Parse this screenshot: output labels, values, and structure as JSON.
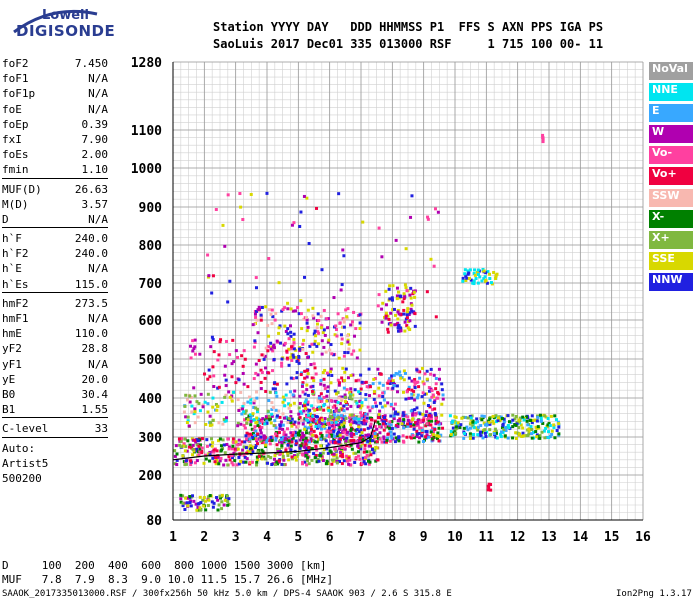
{
  "logo": {
    "line1": "Lowell",
    "line2": "DIGISONDE"
  },
  "header": {
    "labels": "Station YYYY DAY   DDD HHMMSS P1  FFS S AXN PPS IGA PS",
    "values": "SaoLuis 2017 Dec01 335 013000 RSF     1 715 100 00- 11"
  },
  "params": [
    {
      "name": "foF2",
      "value": "7.450"
    },
    {
      "name": "foF1",
      "value": "N/A"
    },
    {
      "name": "foF1p",
      "value": "N/A"
    },
    {
      "name": "foE",
      "value": "N/A"
    },
    {
      "name": "foEp",
      "value": "0.39"
    },
    {
      "name": "fxI",
      "value": "7.90"
    },
    {
      "name": "foEs",
      "value": "2.00"
    },
    {
      "name": "fmin",
      "value": "1.10"
    },
    {
      "sep": true
    },
    {
      "name": "MUF(D)",
      "value": "26.63"
    },
    {
      "name": "M(D)",
      "value": "3.57"
    },
    {
      "name": "D",
      "value": "N/A"
    },
    {
      "sep": true
    },
    {
      "name": "h`F",
      "value": "240.0"
    },
    {
      "name": "h`F2",
      "value": "240.0"
    },
    {
      "name": "h`E",
      "value": "N/A"
    },
    {
      "name": "h`Es",
      "value": "115.0"
    },
    {
      "sep": true
    },
    {
      "name": "hmF2",
      "value": "273.5"
    },
    {
      "name": "hmF1",
      "value": "N/A"
    },
    {
      "name": "hmE",
      "value": "110.0"
    },
    {
      "name": "yF2",
      "value": "28.8"
    },
    {
      "name": "yF1",
      "value": "N/A"
    },
    {
      "name": "yE",
      "value": "20.0"
    },
    {
      "name": "B0",
      "value": "30.4"
    },
    {
      "name": "B1",
      "value": "1.55"
    },
    {
      "sep": true
    },
    {
      "name": "C-level",
      "value": "33"
    },
    {
      "sep": true
    },
    {
      "name": "Auto:",
      "value": ""
    },
    {
      "name": "Artist5",
      "value": ""
    },
    {
      "name": "500200",
      "value": ""
    }
  ],
  "legend": [
    {
      "label": "NoVal",
      "color": "#a0a0a0"
    },
    {
      "label": "NNE",
      "color": "#00e5f0"
    },
    {
      "label": "E",
      "color": "#38a8ff"
    },
    {
      "label": "W",
      "color": "#b000b0"
    },
    {
      "label": "Vo-",
      "color": "#ff40a0"
    },
    {
      "label": "Vo+",
      "color": "#f00040"
    },
    {
      "label": "SSW",
      "color": "#f8b8b0"
    },
    {
      "label": "X-",
      "color": "#008000"
    },
    {
      "label": "X+",
      "color": "#80b840"
    },
    {
      "label": "SSE",
      "color": "#d8d800"
    },
    {
      "label": "NNW",
      "color": "#2020e0"
    }
  ],
  "footer": {
    "d_row": "D     100  200  400  600  800 1000 1500 3000 [km]",
    "muf_row": "MUF   7.8  7.9  8.3  9.0 10.0 11.5 15.7 26.6 [MHz]",
    "file_info": "SAAOK_2017335013000.RSF / 300fx256h 50 kHz 5.0 km / DPS-4 SAAOK 903 / 2.6 S 315.8 E",
    "version": "Ion2Png 1.3.17"
  },
  "chart_data": {
    "type": "scatter",
    "x_ticks": [
      1,
      2,
      3,
      4,
      5,
      6,
      7,
      8,
      9,
      10,
      11,
      12,
      13,
      14,
      15,
      16
    ],
    "y_ticks": [
      1280,
      1100,
      1000,
      900,
      800,
      700,
      600,
      500,
      400,
      300,
      200,
      80
    ],
    "xlim": [
      1,
      16
    ],
    "ylim": [
      80,
      1280
    ],
    "grid": true,
    "legend_position": "right",
    "trace": {
      "name": "",
      "x": [
        1.0,
        1.5,
        2.0,
        3.0,
        4.0,
        5.0,
        6.0,
        7.0,
        7.3,
        7.45
      ],
      "y": [
        240,
        245,
        250,
        255,
        258,
        262,
        272,
        285,
        300,
        340
      ]
    },
    "clusters": [
      {
        "x": [
          1.0,
          7.5
        ],
        "y": [
          230,
          300
        ],
        "n": 520,
        "colors": [
          "#f00040",
          "#ff40a0",
          "#b000b0",
          "#008000",
          "#d8d800",
          "#2020e0",
          "#80b840"
        ]
      },
      {
        "x": [
          3.2,
          9.5
        ],
        "y": [
          290,
          360
        ],
        "n": 480,
        "colors": [
          "#f00040",
          "#ff40a0",
          "#b000b0",
          "#2020e0",
          "#38a8ff",
          "#008000"
        ]
      },
      {
        "x": [
          5.0,
          9.6
        ],
        "y": [
          300,
          480
        ],
        "n": 420,
        "colors": [
          "#b000b0",
          "#ff40a0",
          "#2020e0",
          "#f00040",
          "#38a8ff",
          "#d8d800"
        ]
      },
      {
        "x": [
          1.3,
          7.0
        ],
        "y": [
          330,
          420
        ],
        "n": 220,
        "colors": [
          "#d8d800",
          "#38a8ff",
          "#00e5f0",
          "#f8b8b0",
          "#b000b0",
          "#80b840"
        ]
      },
      {
        "x": [
          9.8,
          13.3
        ],
        "y": [
          300,
          360
        ],
        "n": 260,
        "colors": [
          "#d8d800",
          "#80b840",
          "#00e5f0",
          "#2020e0",
          "#008000",
          "#38a8ff"
        ]
      },
      {
        "x": [
          3.5,
          7.0
        ],
        "y": [
          500,
          640
        ],
        "n": 180,
        "colors": [
          "#d8d800",
          "#b000b0",
          "#ff40a0",
          "#f8b8b0",
          "#2020e0"
        ]
      },
      {
        "x": [
          7.6,
          8.7
        ],
        "y": [
          570,
          700
        ],
        "n": 90,
        "colors": [
          "#b000b0",
          "#d8d800",
          "#2020e0",
          "#f00040"
        ]
      },
      {
        "x": [
          10.2,
          11.3
        ],
        "y": [
          700,
          740
        ],
        "n": 50,
        "colors": [
          "#00e5f0",
          "#d8d800",
          "#2020e0"
        ]
      },
      {
        "x": [
          1.2,
          2.8
        ],
        "y": [
          110,
          150
        ],
        "n": 70,
        "colors": [
          "#008000",
          "#80b840",
          "#b000b0",
          "#d8d800",
          "#2020e0"
        ]
      },
      {
        "x": [
          1.5,
          5.5
        ],
        "y": [
          420,
          560
        ],
        "n": 110,
        "colors": [
          "#b000b0",
          "#f00040",
          "#2020e0",
          "#ff40a0"
        ]
      },
      {
        "x": [
          2.0,
          9.5
        ],
        "y": [
          600,
          950
        ],
        "n": 60,
        "colors": [
          "#b000b0",
          "#ff40a0",
          "#d8d800",
          "#f00040",
          "#2020e0"
        ]
      },
      {
        "x": [
          12.7,
          12.8
        ],
        "y": [
          1070,
          1090
        ],
        "n": 6,
        "colors": [
          "#ff40a0"
        ]
      },
      {
        "x": [
          11.0,
          11.1
        ],
        "y": [
          160,
          180
        ],
        "n": 6,
        "colors": [
          "#f00040"
        ]
      }
    ]
  }
}
